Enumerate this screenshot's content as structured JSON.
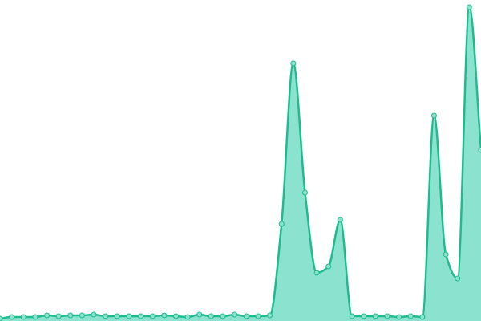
{
  "chart_data": {
    "type": "area",
    "values": [
      3,
      5,
      5,
      5,
      7,
      6,
      7,
      7,
      8,
      6,
      6,
      6,
      6,
      6,
      7,
      6,
      5,
      8,
      6,
      6,
      8,
      6,
      6,
      7,
      121,
      321,
      160,
      60,
      68,
      126,
      6,
      6,
      6,
      6,
      5,
      6,
      5,
      256,
      83,
      53,
      391,
      213
    ],
    "ylim": [
      0,
      400
    ],
    "color": "#1dbb8e",
    "fill": "#8be3cf"
  }
}
